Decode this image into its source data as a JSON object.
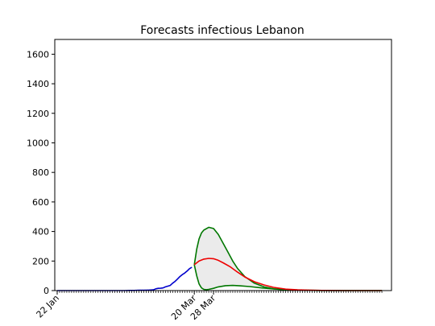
{
  "chart_data": {
    "type": "line",
    "title": "Forecasts infectious Lebanon",
    "xlabel": "",
    "ylabel": "",
    "ylim": [
      0,
      1700
    ],
    "yticks": [
      0,
      200,
      400,
      600,
      800,
      1000,
      1200,
      1400,
      1600
    ],
    "x_range_days": [
      -1,
      139
    ],
    "x_tick_labels": [
      {
        "label": "22 Jan",
        "day": 0
      },
      {
        "label": "20 Mar",
        "day": 57
      },
      {
        "label": "28 Mar",
        "day": 65
      }
    ],
    "minor_tick_days": {
      "from": 0,
      "to": 135,
      "step": 1
    },
    "grid": false,
    "legend": "none",
    "colors": {
      "observed": "#0000cc",
      "forecast_mean": "#ee0000",
      "forecast_bounds": "#007700",
      "band_fill": "#ebebeb"
    },
    "series": [
      {
        "role": "observed",
        "x": [
          0,
          5,
          10,
          15,
          20,
          25,
          28,
          30,
          32,
          34,
          36,
          38,
          40,
          41,
          42,
          43,
          44,
          45,
          46,
          47,
          48,
          49,
          50,
          51,
          52,
          53,
          54,
          55,
          56
        ],
        "y": [
          0,
          0,
          0,
          0,
          0,
          0,
          0,
          1,
          1,
          2,
          2,
          3,
          5,
          12,
          15,
          16,
          18,
          25,
          30,
          35,
          50,
          62,
          78,
          95,
          108,
          118,
          132,
          148,
          158
        ]
      },
      {
        "role": "forecast_mean",
        "x": [
          57,
          59,
          61,
          63,
          65,
          67,
          69,
          72,
          75,
          78,
          82,
          86,
          90,
          95,
          100,
          110,
          120,
          135
        ],
        "y": [
          175,
          200,
          213,
          218,
          216,
          205,
          188,
          160,
          125,
          92,
          60,
          38,
          22,
          10,
          5,
          1,
          0,
          0
        ]
      },
      {
        "role": "upper_bound",
        "x": [
          57,
          58,
          59,
          60,
          61,
          63,
          65,
          67,
          69,
          71,
          73,
          75,
          78,
          82,
          86,
          90,
          95,
          100,
          110,
          120,
          135
        ],
        "y": [
          175,
          280,
          350,
          390,
          410,
          428,
          420,
          380,
          320,
          260,
          200,
          150,
          95,
          50,
          25,
          12,
          5,
          2,
          0,
          0,
          0
        ]
      },
      {
        "role": "lower_bound",
        "x": [
          57,
          58,
          59,
          60,
          61,
          62,
          63,
          65,
          67,
          70,
          73,
          76,
          80,
          85,
          90,
          95,
          100,
          110,
          120,
          135
        ],
        "y": [
          175,
          100,
          45,
          18,
          8,
          6,
          8,
          15,
          25,
          33,
          35,
          32,
          27,
          18,
          11,
          6,
          3,
          1,
          0,
          0
        ]
      }
    ]
  }
}
